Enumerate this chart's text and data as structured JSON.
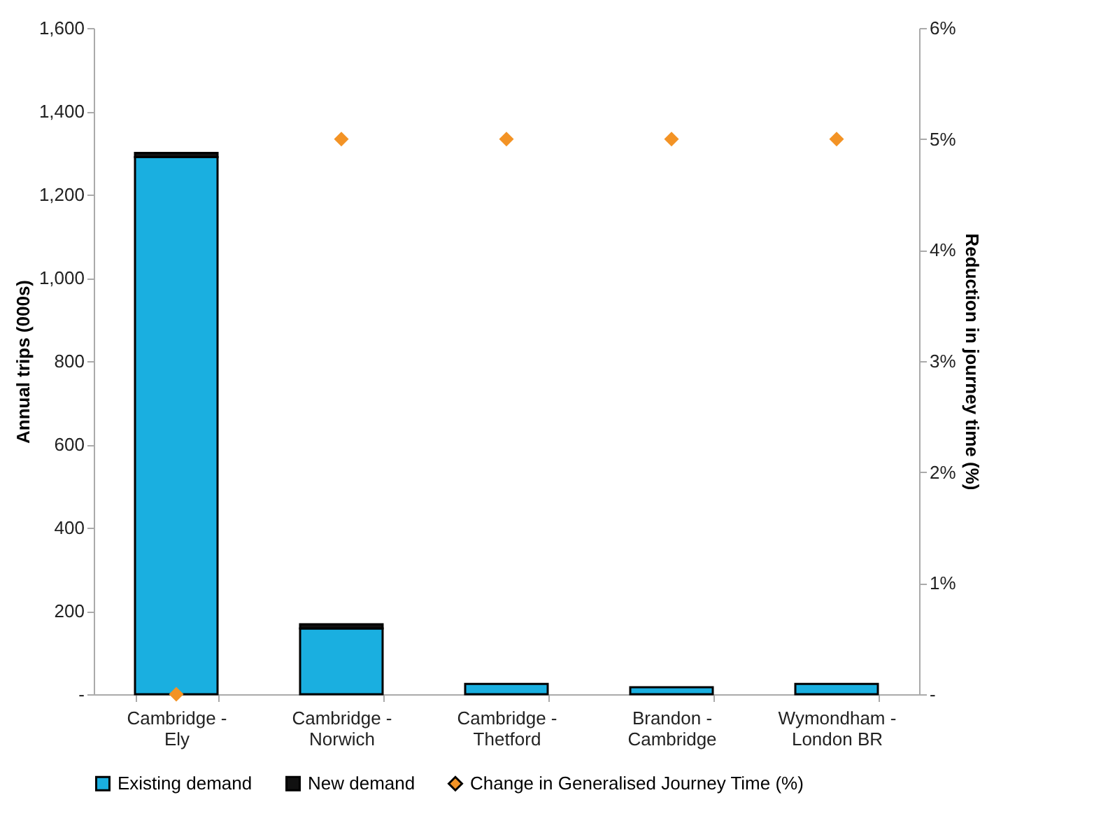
{
  "chart_data": {
    "type": "bar",
    "ylabel": "Annual trips (000s)",
    "y2label": "Reduction in journey time (%)",
    "categories": [
      "Cambridge - Ely",
      "Cambridge - Norwich",
      "Cambridge - Thetford",
      "Brandon - Cambridge",
      "Wymondham - London BR"
    ],
    "stacked": true,
    "series": [
      {
        "name": "Existing demand",
        "color": "#1aafe0",
        "values": [
          1290,
          158,
          25,
          17,
          25
        ]
      },
      {
        "name": "New demand",
        "color": "#111111",
        "values": [
          10,
          10,
          null,
          null,
          null
        ]
      },
      {
        "name": "Change in Generalised Journey Time (%)",
        "type": "scatter",
        "axis": "y2",
        "color": "#f39325",
        "values": [
          0,
          5,
          5,
          5,
          5
        ]
      }
    ],
    "ylim": [
      0,
      1600
    ],
    "yticks": [
      {
        "value": 0,
        "label": "-"
      },
      200,
      400,
      600,
      800,
      {
        "value": 1000,
        "label": "1,000"
      },
      {
        "value": 1200,
        "label": "1,200"
      },
      {
        "value": 1400,
        "label": "1,400"
      },
      {
        "value": 1600,
        "label": "1,600"
      }
    ],
    "y2lim": [
      0,
      6
    ],
    "y2ticks": [
      {
        "value": 0,
        "label": "-"
      },
      {
        "value": 1,
        "label": "1%"
      },
      {
        "value": 2,
        "label": "2%"
      },
      {
        "value": 3,
        "label": "3%"
      },
      {
        "value": 4,
        "label": "4%"
      },
      {
        "value": 5,
        "label": "5%"
      },
      {
        "value": 6,
        "label": "6%"
      }
    ],
    "marker": "diamond",
    "grid": false,
    "legend": "bottom"
  }
}
